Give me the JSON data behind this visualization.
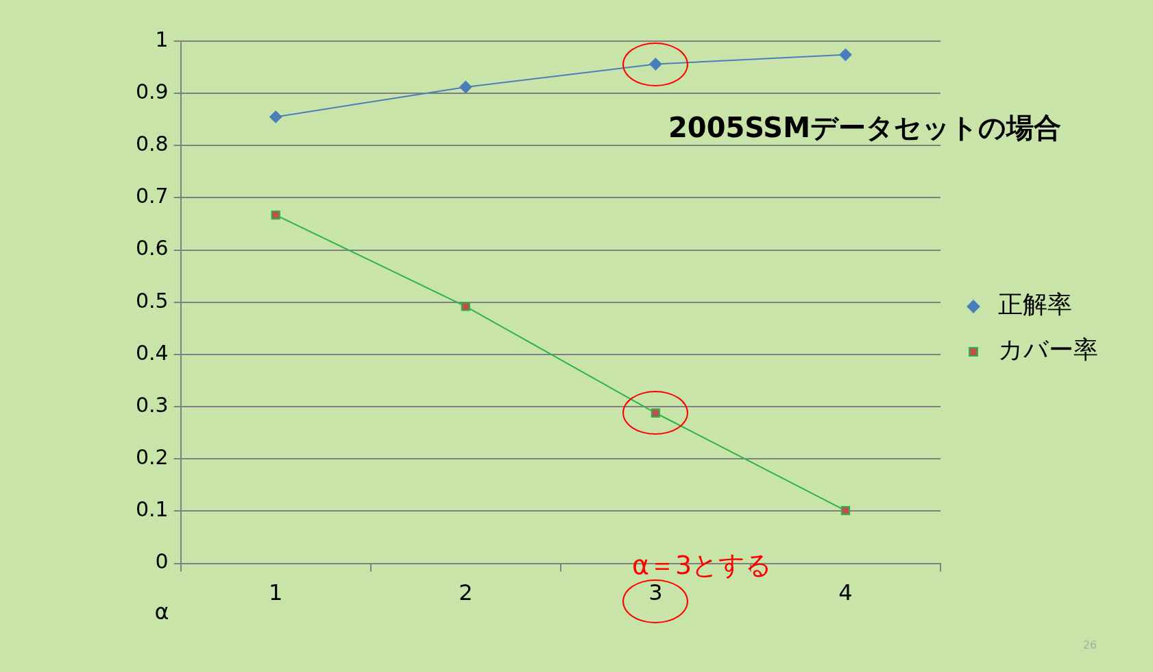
{
  "chart_data": {
    "type": "line",
    "title": "2005SSMデータセットの場合",
    "xlabel": "α",
    "categories": [
      "1",
      "2",
      "3",
      "4"
    ],
    "series": [
      {
        "name": "正解率",
        "color": "#4a7ebb",
        "values": [
          0.855,
          0.912,
          0.956,
          0.974
        ],
        "marker": "diamond"
      },
      {
        "name": "カバー率",
        "color": "#2db34a",
        "values": [
          0.667,
          0.492,
          0.288,
          0.101
        ],
        "marker": "square"
      }
    ],
    "ylim": [
      0,
      1
    ],
    "yticks": [
      0,
      0.1,
      0.2,
      0.3,
      0.4,
      0.5,
      0.6,
      0.7,
      0.8,
      0.9,
      1
    ],
    "grid": "y",
    "legend": "right",
    "annotations": [
      "α＝3とする",
      "26"
    ]
  }
}
